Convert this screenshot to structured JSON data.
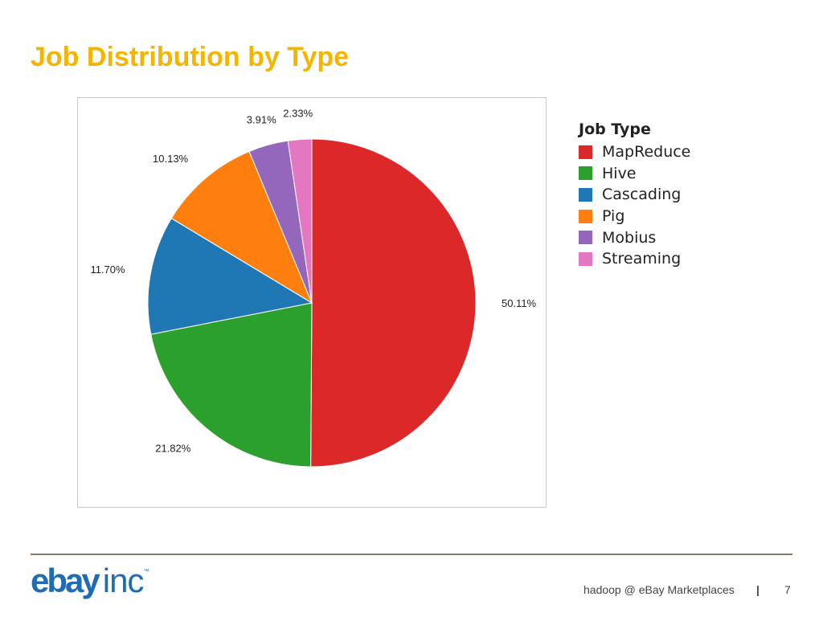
{
  "slide": {
    "title": "Job Distribution by Type"
  },
  "chart_data": {
    "type": "pie",
    "legend_title": "Job Type",
    "legend_placement": "right",
    "slices": [
      {
        "name": "MapReduce",
        "value": 50.11,
        "label": "50.11%",
        "color": "#dc2828"
      },
      {
        "name": "Hive",
        "value": 21.82,
        "label": "21.82%",
        "color": "#2ca02c"
      },
      {
        "name": "Cascading",
        "value": 11.7,
        "label": "11.70%",
        "color": "#1f77b4"
      },
      {
        "name": "Pig",
        "value": 10.13,
        "label": "10.13%",
        "color": "#ff7f0e"
      },
      {
        "name": "Mobius",
        "value": 3.91,
        "label": "3.91%",
        "color": "#9467bd"
      },
      {
        "name": "Streaming",
        "value": 2.33,
        "label": "2.33%",
        "color": "#e377c2"
      }
    ]
  },
  "footer": {
    "logo_main": "ebay",
    "logo_suffix": "inc",
    "logo_tm": "™",
    "text": "hadoop @ eBay Marketplaces",
    "separator": "|",
    "page_number": "7"
  },
  "colors": {
    "title": "#f5b400",
    "logo": "#1f6cb5",
    "rule": "#8c7b6b"
  }
}
